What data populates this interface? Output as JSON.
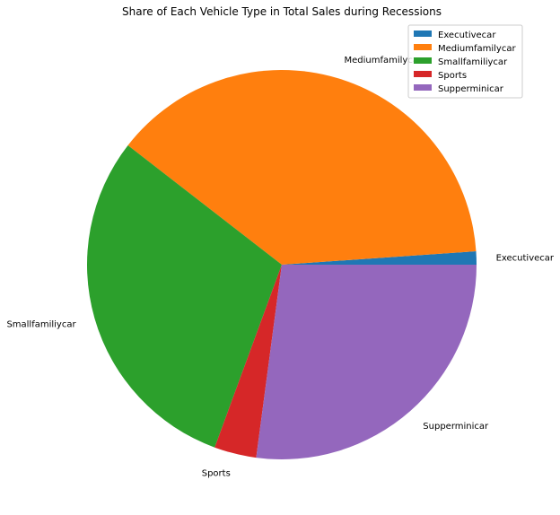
{
  "chart_data": {
    "type": "pie",
    "title": "Share of Each Vehicle Type in Total Sales during Recessions",
    "categories": [
      "Executivecar",
      "Mediumfamilycar",
      "Smallfamiliycar",
      "Sports",
      "Supperminicar"
    ],
    "values": [
      1.1,
      38.4,
      29.9,
      3.5,
      27.1
    ],
    "colors": [
      "#1f77b4",
      "#ff7f0e",
      "#2ca02c",
      "#d62728",
      "#9467bd"
    ],
    "start_angle_deg": 0,
    "direction": "counterclockwise",
    "legend": {
      "position": "top-right",
      "entries": [
        "Executivecar",
        "Mediumfamilycar",
        "Smallfamiliycar",
        "Sports",
        "Supperminicar"
      ]
    }
  }
}
